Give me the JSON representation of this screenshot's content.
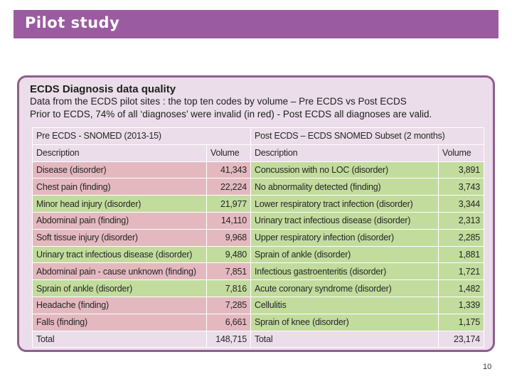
{
  "slide": {
    "title": "Pilot study",
    "page_number": "10"
  },
  "card": {
    "heading": "ECDS Diagnosis data quality",
    "line1": "Data from the ECDS pilot sites : the top ten codes by volume – Pre ECDS vs Post ECDS",
    "line2": "Prior to ECDS, 74% of all ‘diagnoses’ were invalid (in red) - Post ECDS all diagnoses are valid."
  },
  "table": {
    "pre_header": "Pre ECDS - SNOMED (2013-15)",
    "post_header": "Post ECDS – ECDS SNOMED Subset (2 months)",
    "col_description": "Description",
    "col_volume": "Volume",
    "rows": [
      {
        "pre_desc": "Disease (disorder)",
        "pre_vol": "41,343",
        "pre_valid": false,
        "post_desc": "Concussion with no LOC (disorder)",
        "post_vol": "3,891"
      },
      {
        "pre_desc": "Chest pain (finding)",
        "pre_vol": "22,224",
        "pre_valid": false,
        "post_desc": "No abnormality detected (finding)",
        "post_vol": "3,743"
      },
      {
        "pre_desc": "Minor head injury (disorder)",
        "pre_vol": "21,977",
        "pre_valid": true,
        "post_desc": "Lower respiratory tract infection (disorder)",
        "post_vol": "3,344"
      },
      {
        "pre_desc": "Abdominal pain (finding)",
        "pre_vol": "14,110",
        "pre_valid": false,
        "post_desc": "Urinary tract infectious disease (disorder)",
        "post_vol": "2,313"
      },
      {
        "pre_desc": "Soft tissue injury (disorder)",
        "pre_vol": "9,968",
        "pre_valid": false,
        "post_desc": "Upper respiratory infection (disorder)",
        "post_vol": "2,285"
      },
      {
        "pre_desc": "Urinary tract infectious disease (disorder)",
        "pre_vol": "9,480",
        "pre_valid": true,
        "post_desc": "Sprain of ankle (disorder)",
        "post_vol": "1,881"
      },
      {
        "pre_desc": "Abdominal pain - cause unknown (finding)",
        "pre_vol": "7,851",
        "pre_valid": false,
        "post_desc": "Infectious gastroenteritis (disorder)",
        "post_vol": "1,721"
      },
      {
        "pre_desc": "Sprain of ankle (disorder)",
        "pre_vol": "7,816",
        "pre_valid": true,
        "post_desc": "Acute coronary syndrome (disorder)",
        "post_vol": "1,482"
      },
      {
        "pre_desc": "Headache (finding)",
        "pre_vol": "7,285",
        "pre_valid": false,
        "post_desc": "Cellulitis",
        "post_vol": "1,339"
      },
      {
        "pre_desc": "Falls (finding)",
        "pre_vol": "6,661",
        "pre_valid": false,
        "post_desc": "Sprain of knee (disorder)",
        "post_vol": "1,175"
      }
    ],
    "total_label": "Total",
    "pre_total": "148,715",
    "post_total": "23,174"
  },
  "colors": {
    "title_bar": "#9b5ba0",
    "card_bg": "#ebdde9",
    "invalid": "#e3b9bf",
    "valid": "#c2dc9d"
  }
}
